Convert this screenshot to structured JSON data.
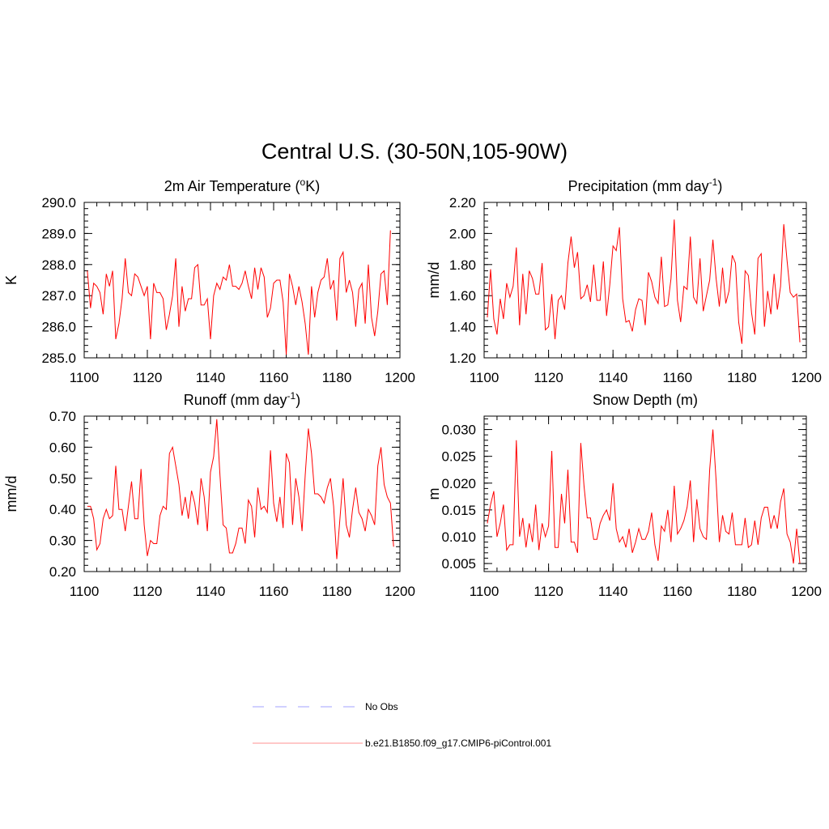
{
  "title": "Central U.S. (30-50N,105-90W)",
  "colors": {
    "model_line": "#ff0000",
    "obs_line": "#a0a0ff",
    "model_legend_line": "#ff9090",
    "axis": "#000000"
  },
  "legend": {
    "obs_label": "No Obs",
    "model_label": "b.e21.B1850.f09_g17.CMIP6-piControl.001"
  },
  "chart_data": [
    {
      "type": "line",
      "title": "2m Air Temperature (°K)",
      "title_main": "2m Air Temperature (",
      "title_sup": "o",
      "title_after": "K)",
      "ylabel": "K",
      "xlim": [
        1100,
        1200
      ],
      "ylim": [
        285.0,
        290.0
      ],
      "yticks": [
        285.0,
        286.0,
        287.0,
        288.0,
        289.0,
        290.0
      ],
      "ytick_labels": [
        "285.0",
        "286.0",
        "287.0",
        "288.0",
        "289.0",
        "290.0"
      ],
      "xticks": [
        1100,
        1120,
        1140,
        1160,
        1180,
        1200
      ],
      "xtick_labels": [
        "1100",
        "1120",
        "1140",
        "1160",
        "1180",
        "1200"
      ],
      "series": [
        {
          "name": "b.e21.B1850.f09_g17.CMIP6-piControl.001",
          "x_start": 1101,
          "values": [
            287.8,
            286.6,
            287.4,
            287.3,
            287.1,
            286.4,
            287.7,
            287.3,
            287.8,
            285.6,
            286.1,
            286.9,
            288.2,
            287.1,
            287.0,
            287.7,
            287.6,
            287.3,
            287.0,
            287.3,
            285.6,
            287.4,
            287.1,
            287.1,
            286.9,
            285.9,
            286.4,
            287.0,
            288.2,
            286.0,
            287.3,
            286.5,
            286.9,
            286.9,
            287.9,
            288.0,
            286.7,
            286.7,
            286.9,
            285.6,
            287.0,
            287.4,
            287.2,
            287.6,
            287.5,
            288.0,
            287.3,
            287.3,
            287.2,
            287.4,
            287.8,
            287.3,
            286.9,
            287.9,
            287.2,
            287.9,
            287.6,
            286.3,
            286.6,
            287.4,
            287.5,
            287.5,
            286.8,
            285.1,
            287.7,
            287.3,
            286.7,
            287.3,
            286.8,
            286.1,
            285.1,
            287.3,
            286.3,
            287.1,
            287.5,
            287.6,
            288.2,
            287.2,
            287.5,
            286.2,
            288.2,
            288.4,
            287.1,
            287.5,
            287.1,
            286.0,
            287.2,
            287.4,
            286.1,
            288.0,
            286.3,
            285.7,
            286.5,
            287.7,
            287.8,
            286.7,
            289.1
          ]
        }
      ]
    },
    {
      "type": "line",
      "title": "Precipitation (mm day-1)",
      "title_main": "Precipitation (mm day",
      "title_sup": "-1",
      "title_after": ")",
      "ylabel": "mm/d",
      "xlim": [
        1100,
        1200
      ],
      "ylim": [
        1.2,
        2.2
      ],
      "yticks": [
        1.2,
        1.4,
        1.6,
        1.8,
        2.0,
        2.2
      ],
      "ytick_labels": [
        "1.20",
        "1.40",
        "1.60",
        "1.80",
        "2.00",
        "2.20"
      ],
      "xticks": [
        1100,
        1120,
        1140,
        1160,
        1180,
        1200
      ],
      "xtick_labels": [
        "1100",
        "1120",
        "1140",
        "1160",
        "1180",
        "1200"
      ],
      "series": [
        {
          "name": "b.e21.B1850.f09_g17.CMIP6-piControl.001",
          "x_start": 1101,
          "values": [
            1.46,
            1.77,
            1.45,
            1.35,
            1.58,
            1.45,
            1.68,
            1.59,
            1.66,
            1.91,
            1.41,
            1.74,
            1.48,
            1.76,
            1.71,
            1.61,
            1.61,
            1.81,
            1.38,
            1.4,
            1.61,
            1.32,
            1.57,
            1.6,
            1.51,
            1.81,
            1.98,
            1.78,
            1.88,
            1.58,
            1.6,
            1.67,
            1.56,
            1.8,
            1.57,
            1.57,
            1.82,
            1.47,
            1.67,
            1.92,
            1.89,
            2.04,
            1.58,
            1.43,
            1.44,
            1.37,
            1.51,
            1.58,
            1.57,
            1.41,
            1.75,
            1.69,
            1.59,
            1.55,
            1.85,
            1.53,
            1.54,
            1.71,
            2.09,
            1.57,
            1.43,
            1.66,
            1.64,
            1.98,
            1.59,
            1.55,
            1.84,
            1.5,
            1.6,
            1.7,
            1.96,
            1.71,
            1.53,
            1.78,
            1.55,
            1.63,
            1.86,
            1.81,
            1.43,
            1.29,
            1.76,
            1.73,
            1.49,
            1.35,
            1.84,
            1.87,
            1.4,
            1.63,
            1.48,
            1.74,
            1.51,
            1.66,
            2.06,
            1.83,
            1.62,
            1.59,
            1.61,
            1.3
          ]
        }
      ]
    },
    {
      "type": "line",
      "title": "Runoff (mm day-1)",
      "title_main": "Runoff (mm day",
      "title_sup": "-1",
      "title_after": ")",
      "ylabel": "mm/d",
      "xlim": [
        1100,
        1200
      ],
      "ylim": [
        0.2,
        0.7
      ],
      "yticks": [
        0.2,
        0.3,
        0.4,
        0.5,
        0.6,
        0.7
      ],
      "ytick_labels": [
        "0.20",
        "0.30",
        "0.40",
        "0.50",
        "0.60",
        "0.70"
      ],
      "xticks": [
        1100,
        1120,
        1140,
        1160,
        1180,
        1200
      ],
      "xtick_labels": [
        "1100",
        "1120",
        "1140",
        "1160",
        "1180",
        "1200"
      ],
      "series": [
        {
          "name": "b.e21.B1850.f09_g17.CMIP6-piControl.001",
          "x_start": 1101,
          "values": [
            0.41,
            0.41,
            0.37,
            0.27,
            0.29,
            0.37,
            0.4,
            0.37,
            0.38,
            0.54,
            0.4,
            0.4,
            0.33,
            0.41,
            0.49,
            0.37,
            0.37,
            0.53,
            0.35,
            0.25,
            0.3,
            0.29,
            0.29,
            0.38,
            0.41,
            0.4,
            0.58,
            0.6,
            0.54,
            0.48,
            0.38,
            0.44,
            0.37,
            0.46,
            0.42,
            0.35,
            0.5,
            0.44,
            0.33,
            0.52,
            0.57,
            0.69,
            0.51,
            0.35,
            0.34,
            0.26,
            0.26,
            0.29,
            0.34,
            0.34,
            0.29,
            0.43,
            0.41,
            0.31,
            0.47,
            0.4,
            0.41,
            0.39,
            0.59,
            0.42,
            0.36,
            0.44,
            0.34,
            0.58,
            0.55,
            0.35,
            0.5,
            0.44,
            0.33,
            0.51,
            0.66,
            0.58,
            0.45,
            0.45,
            0.44,
            0.42,
            0.47,
            0.5,
            0.41,
            0.24,
            0.37,
            0.5,
            0.35,
            0.31,
            0.4,
            0.47,
            0.39,
            0.37,
            0.33,
            0.4,
            0.38,
            0.35,
            0.54,
            0.6,
            0.48,
            0.44,
            0.42,
            0.28
          ]
        }
      ]
    },
    {
      "type": "line",
      "title": "Snow Depth (m)",
      "title_main": "Snow Depth (m)",
      "title_sup": "",
      "title_after": "",
      "ylabel": "m",
      "xlim": [
        1100,
        1200
      ],
      "ylim": [
        0.0035,
        0.0325
      ],
      "yticks": [
        0.005,
        0.01,
        0.015,
        0.02,
        0.025,
        0.03
      ],
      "ytick_labels": [
        "0.005",
        "0.010",
        "0.015",
        "0.020",
        "0.025",
        "0.030"
      ],
      "xticks": [
        1100,
        1120,
        1140,
        1160,
        1180,
        1200
      ],
      "xtick_labels": [
        "1100",
        "1120",
        "1140",
        "1160",
        "1180",
        "1200"
      ],
      "series": [
        {
          "name": "b.e21.B1850.f09_g17.CMIP6-piControl.001",
          "x_start": 1101,
          "values": [
            0.0125,
            0.016,
            0.0185,
            0.01,
            0.0125,
            0.016,
            0.0075,
            0.0085,
            0.0085,
            0.028,
            0.01,
            0.0135,
            0.008,
            0.0125,
            0.009,
            0.016,
            0.0075,
            0.0125,
            0.01,
            0.012,
            0.026,
            0.008,
            0.008,
            0.018,
            0.0125,
            0.0225,
            0.009,
            0.009,
            0.007,
            0.0275,
            0.0195,
            0.0135,
            0.0135,
            0.0095,
            0.0095,
            0.0125,
            0.014,
            0.015,
            0.013,
            0.02,
            0.0115,
            0.009,
            0.01,
            0.008,
            0.0115,
            0.007,
            0.009,
            0.0115,
            0.0095,
            0.0095,
            0.011,
            0.0145,
            0.0085,
            0.0055,
            0.012,
            0.011,
            0.015,
            0.009,
            0.0195,
            0.0105,
            0.0115,
            0.013,
            0.0155,
            0.0205,
            0.009,
            0.017,
            0.0115,
            0.01,
            0.0095,
            0.0225,
            0.03,
            0.0205,
            0.009,
            0.014,
            0.011,
            0.0105,
            0.0145,
            0.0085,
            0.0085,
            0.0085,
            0.0135,
            0.008,
            0.0085,
            0.013,
            0.0085,
            0.0135,
            0.0155,
            0.0155,
            0.0115,
            0.014,
            0.0115,
            0.0165,
            0.019,
            0.0105,
            0.009,
            0.005,
            0.0115,
            0.005
          ]
        }
      ]
    }
  ]
}
